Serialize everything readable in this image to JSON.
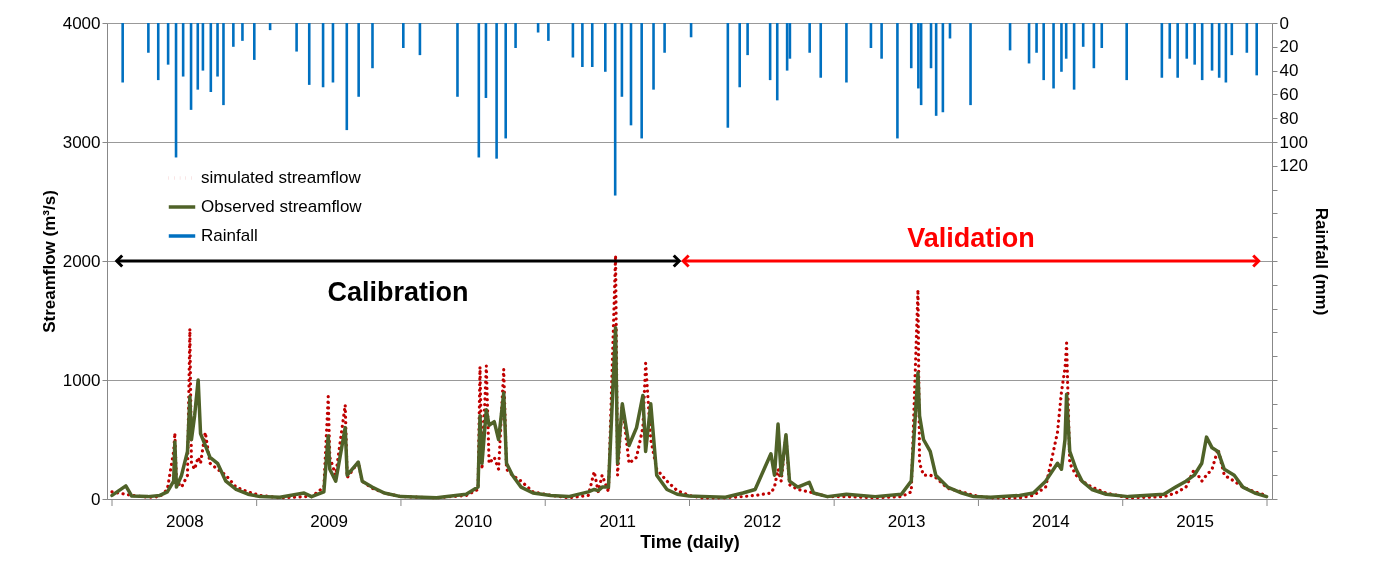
{
  "chart_data": {
    "type": "line",
    "xlabel": "Time (daily)",
    "ylabel": "Streamflow (m³/s)",
    "y2label": "Rainfall (mm)",
    "x": [
      "2008-01-01",
      "2008-02-05",
      "2008-02-20",
      "2008-04-01",
      "2008-05-01",
      "2008-05-20",
      "2008-06-05",
      "2008-06-08",
      "2008-06-12",
      "2008-06-25",
      "2008-07-10",
      "2008-07-16",
      "2008-07-20",
      "2008-07-28",
      "2008-08-06",
      "2008-08-12",
      "2008-08-24",
      "2008-09-05",
      "2008-09-24",
      "2008-10-15",
      "2008-11-10",
      "2008-12-10",
      "2009-01-10",
      "2009-03-01",
      "2009-05-01",
      "2009-05-20",
      "2009-06-20",
      "2009-07-01",
      "2009-07-05",
      "2009-07-20",
      "2009-08-13",
      "2009-08-18",
      "2009-09-15",
      "2009-09-25",
      "2009-10-20",
      "2009-11-20",
      "2010-01-01",
      "2010-04-01",
      "2010-06-15",
      "2010-07-15",
      "2010-07-20",
      "2010-07-25",
      "2010-08-05",
      "2010-08-12",
      "2010-08-25",
      "2010-09-05",
      "2010-09-18",
      "2010-09-25",
      "2010-10-10",
      "2010-11-01",
      "2010-12-01",
      "2011-01-15",
      "2011-03-01",
      "2011-04-20",
      "2011-05-05",
      "2011-05-15",
      "2011-05-25",
      "2011-06-10",
      "2011-06-28",
      "2011-07-03",
      "2011-07-15",
      "2011-08-01",
      "2011-08-20",
      "2011-09-05",
      "2011-09-12",
      "2011-09-25",
      "2011-10-10",
      "2011-11-05",
      "2011-12-01",
      "2011-12-31",
      "2012-02-01",
      "2012-04-01",
      "2012-05-15",
      "2012-06-15",
      "2012-07-25",
      "2012-08-03",
      "2012-08-12",
      "2012-08-20",
      "2012-09-01",
      "2012-09-10",
      "2012-10-01",
      "2012-10-30",
      "2012-11-10",
      "2012-12-15",
      "2013-02-01",
      "2013-04-15",
      "2013-06-20",
      "2013-07-15",
      "2013-08-01",
      "2013-08-05",
      "2013-08-15",
      "2013-09-01",
      "2013-09-15",
      "2013-10-15",
      "2013-11-20",
      "2013-12-20",
      "2014-02-01",
      "2014-04-15",
      "2014-05-20",
      "2014-06-20",
      "2014-07-20",
      "2014-07-30",
      "2014-08-08",
      "2014-08-12",
      "2014-08-20",
      "2014-09-05",
      "2014-09-20",
      "2014-10-15",
      "2014-11-20",
      "2015-01-15",
      "2015-04-15",
      "2015-05-15",
      "2015-06-10",
      "2015-07-01",
      "2015-07-20",
      "2015-08-01",
      "2015-08-15",
      "2015-08-30",
      "2015-09-15",
      "2015-10-10",
      "2015-11-01",
      "2015-12-01",
      "2015-12-31"
    ],
    "xlim": [
      "2008-01-01",
      "2016-01-01"
    ],
    "xticks": [
      {
        "value": "2008-01-01",
        "label": null
      },
      {
        "value": "2008-07-02",
        "label": "2008"
      },
      {
        "value": "2009-01-01",
        "label": null
      },
      {
        "value": "2009-07-02",
        "label": "2009"
      },
      {
        "value": "2010-01-01",
        "label": null
      },
      {
        "value": "2010-07-02",
        "label": "2010"
      },
      {
        "value": "2011-01-01",
        "label": null
      },
      {
        "value": "2011-07-02",
        "label": "2011"
      },
      {
        "value": "2012-01-01",
        "label": null
      },
      {
        "value": "2012-07-02",
        "label": "2012"
      },
      {
        "value": "2013-01-01",
        "label": null
      },
      {
        "value": "2013-07-02",
        "label": "2013"
      },
      {
        "value": "2014-01-01",
        "label": null
      },
      {
        "value": "2014-07-02",
        "label": "2014"
      },
      {
        "value": "2015-01-01",
        "label": null
      },
      {
        "value": "2015-07-02",
        "label": "2015"
      },
      {
        "value": "2016-01-01",
        "label": null
      }
    ],
    "ylim": [
      0,
      4000
    ],
    "yticks": [
      0,
      1000,
      2000,
      3000,
      4000
    ],
    "y2lim": [
      400,
      0
    ],
    "y2ticks": [
      0,
      20,
      40,
      60,
      80,
      100,
      120,
      {
        "value": 140,
        "label": null
      },
      {
        "value": 160,
        "label": null
      },
      {
        "value": 180,
        "label": null
      },
      {
        "value": 200,
        "label": null
      },
      {
        "value": 220,
        "label": null
      },
      {
        "value": 240,
        "label": null
      },
      {
        "value": 260,
        "label": null
      },
      {
        "value": 280,
        "label": null
      },
      {
        "value": 300,
        "label": null
      },
      {
        "value": 320,
        "label": null
      },
      {
        "value": 340,
        "label": null
      },
      {
        "value": 360,
        "label": null
      },
      {
        "value": 380,
        "label": null
      },
      {
        "value": 400,
        "label": null
      }
    ],
    "grid": "y",
    "legend": "top left",
    "series": [
      {
        "name": "simulated streamflow",
        "color": "#c00000",
        "line_style": "dotted",
        "values": [
          60,
          40,
          30,
          15,
          20,
          80,
          400,
          555,
          150,
          100,
          200,
          1430,
          300,
          250,
          350,
          300,
          560,
          300,
          250,
          200,
          100,
          60,
          30,
          10,
          20,
          20,
          100,
          860,
          350,
          200,
          790,
          180,
          310,
          150,
          90,
          50,
          20,
          10,
          30,
          80,
          1110,
          250,
          1120,
          300,
          350,
          250,
          1090,
          250,
          200,
          150,
          60,
          30,
          10,
          30,
          230,
          60,
          200,
          60,
          2050,
          200,
          800,
          300,
          350,
          600,
          1140,
          500,
          250,
          150,
          70,
          30,
          10,
          10,
          20,
          30,
          50,
          100,
          250,
          150,
          530,
          120,
          80,
          60,
          50,
          20,
          20,
          10,
          20,
          60,
          1760,
          300,
          200,
          200,
          180,
          90,
          60,
          30,
          10,
          10,
          30,
          100,
          560,
          900,
          1100,
          1310,
          300,
          200,
          150,
          100,
          50,
          10,
          20,
          50,
          100,
          250,
          150,
          200,
          250,
          420,
          200,
          150,
          100,
          60,
          30
        ]
      },
      {
        "name": "Observed streamflow",
        "color": "#4f6228",
        "line_style": "solid",
        "values": [
          30,
          110,
          25,
          20,
          30,
          60,
          150,
          480,
          100,
          200,
          400,
          860,
          500,
          700,
          1000,
          550,
          450,
          350,
          300,
          150,
          80,
          40,
          20,
          15,
          50,
          20,
          60,
          530,
          250,
          150,
          600,
          200,
          310,
          150,
          100,
          50,
          20,
          10,
          40,
          100,
          700,
          300,
          750,
          620,
          650,
          500,
          890,
          300,
          200,
          100,
          50,
          30,
          20,
          60,
          80,
          70,
          100,
          100,
          1440,
          300,
          800,
          450,
          600,
          870,
          400,
          800,
          200,
          80,
          40,
          25,
          20,
          15,
          50,
          80,
          380,
          200,
          630,
          200,
          540,
          150,
          100,
          140,
          50,
          20,
          40,
          20,
          40,
          150,
          1060,
          700,
          500,
          400,
          200,
          100,
          50,
          20,
          15,
          30,
          50,
          150,
          300,
          250,
          500,
          880,
          400,
          250,
          150,
          80,
          40,
          20,
          40,
          100,
          150,
          200,
          300,
          520,
          430,
          400,
          250,
          200,
          100,
          50,
          20
        ]
      },
      {
        "name": "Rainfall",
        "color": "#0070c0",
        "type": "bar",
        "axis": "y2",
        "x": [
          "2008-01-28",
          "2008-04-02",
          "2008-04-27",
          "2008-05-22",
          "2008-06-11",
          "2008-06-29",
          "2008-07-19",
          "2008-08-05",
          "2008-08-18",
          "2008-09-07",
          "2008-09-24",
          "2008-10-09",
          "2008-11-03",
          "2008-11-26",
          "2008-12-26",
          "2009-02-04",
          "2009-04-12",
          "2009-05-14",
          "2009-06-18",
          "2009-07-13",
          "2009-08-17",
          "2009-09-16",
          "2009-10-21",
          "2010-01-07",
          "2010-02-18",
          "2010-05-24",
          "2010-07-17",
          "2010-08-04",
          "2010-08-31",
          "2010-09-23",
          "2010-10-18",
          "2010-12-14",
          "2011-01-09",
          "2011-03-12",
          "2011-04-05",
          "2011-04-30",
          "2011-06-02",
          "2011-06-27",
          "2011-07-14",
          "2011-08-06",
          "2011-09-02",
          "2011-10-02",
          "2011-10-30",
          "2012-01-05",
          "2012-04-07",
          "2012-05-07",
          "2012-05-27",
          "2012-07-23",
          "2012-08-10",
          "2012-09-04",
          "2012-09-11",
          "2012-10-31",
          "2012-11-28",
          "2013-02-01",
          "2013-04-04",
          "2013-05-01",
          "2013-06-10",
          "2013-07-15",
          "2013-08-02",
          "2013-08-09",
          "2013-09-03",
          "2013-09-16",
          "2013-10-03",
          "2013-10-21",
          "2013-12-12",
          "2014-03-22",
          "2014-05-09",
          "2014-05-28",
          "2014-06-15",
          "2014-07-10",
          "2014-07-30",
          "2014-08-11",
          "2014-08-31",
          "2014-09-23",
          "2014-10-20",
          "2014-11-09",
          "2015-01-11",
          "2015-04-10",
          "2015-04-30",
          "2015-05-20",
          "2015-06-12",
          "2015-07-02",
          "2015-07-21",
          "2015-08-15",
          "2015-09-02",
          "2015-09-19",
          "2015-10-04",
          "2015-11-11",
          "2015-12-06"
        ],
        "values": [
          50,
          25,
          48,
          35,
          113,
          45,
          73,
          56,
          40,
          58,
          45,
          69,
          20,
          15,
          31,
          6,
          24,
          52,
          54,
          50,
          90,
          62,
          38,
          21,
          27,
          62,
          113,
          63,
          114,
          97,
          21,
          8,
          15,
          29,
          37,
          37,
          41,
          145,
          62,
          86,
          97,
          56,
          25,
          12,
          88,
          54,
          27,
          48,
          65,
          40,
          30,
          25,
          46,
          50,
          21,
          30,
          97,
          38,
          55,
          69,
          38,
          78,
          75,
          13,
          69,
          23,
          34,
          25,
          48,
          55,
          41,
          30,
          56,
          20,
          38,
          21,
          48,
          46,
          30,
          46,
          30,
          35,
          48,
          40,
          46,
          50,
          27,
          25,
          44
        ]
      },
      {
        "color": "#000000",
        "type": "line",
        "marker": "cross",
        "x": [
          "2008-01-13",
          "2011-12-06"
        ],
        "values": [
          2000,
          2000
        ]
      },
      {
        "color": "#ff0000",
        "type": "line",
        "marker": "cross",
        "x": [
          "2011-12-16",
          "2015-12-11"
        ],
        "values": [
          2000,
          2000
        ]
      }
    ],
    "annotations": [
      "Calibration",
      "Validation"
    ]
  }
}
